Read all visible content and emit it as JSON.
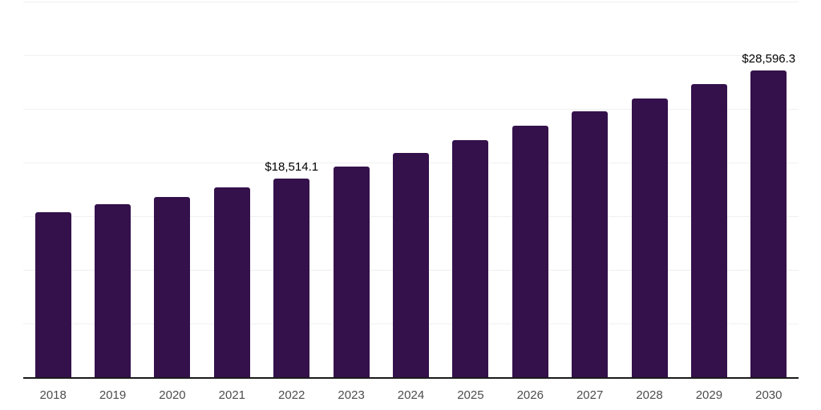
{
  "chart_data": {
    "type": "bar",
    "title": "",
    "xlabel": "",
    "ylabel": "",
    "categories": [
      "2018",
      "2019",
      "2020",
      "2021",
      "2022",
      "2023",
      "2024",
      "2025",
      "2026",
      "2027",
      "2028",
      "2029",
      "2030"
    ],
    "values": [
      15350,
      16150,
      16800,
      17650,
      18514.1,
      19650,
      20900,
      22100,
      23400,
      24800,
      26000,
      27350,
      28596.3
    ],
    "data_labels": [
      {
        "category": "2022",
        "text": "$18,514.1"
      },
      {
        "category": "2030",
        "text": "$28,596.3"
      }
    ],
    "ylim": [
      0,
      35000
    ],
    "grid_interval": 5000,
    "grid": true,
    "y_axis_tick_labels_visible": false,
    "legend": "none",
    "colors": {
      "bar": "#34114b",
      "gridline": "#f0f0f0",
      "axis_line": "#1a1a1a",
      "x_tick_label": "#4d4d4d",
      "data_label": "#000000",
      "background": "#ffffff"
    }
  }
}
